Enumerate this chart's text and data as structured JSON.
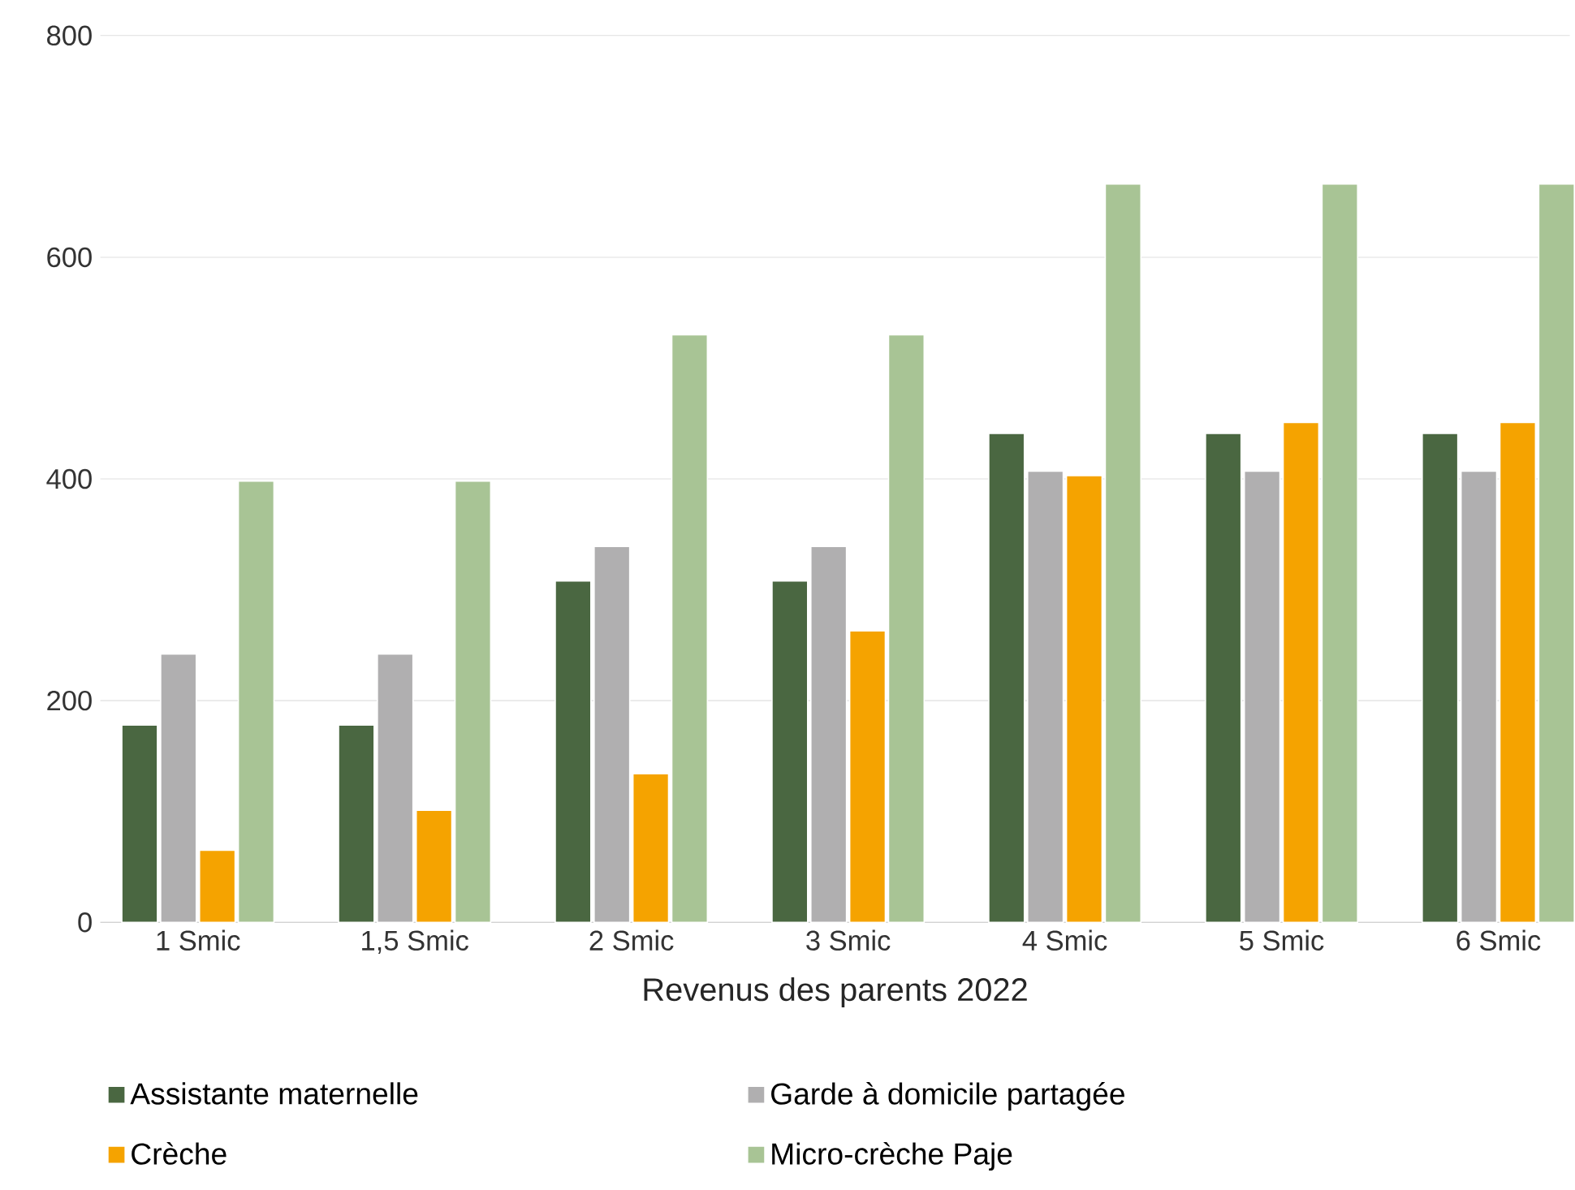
{
  "chart_data": {
    "type": "bar",
    "xlabel": "Revenus des parents 2022",
    "categories": [
      "1 Smic",
      "1,5 Smic",
      "2 Smic",
      "3 Smic",
      "4 Smic",
      "5 Smic",
      "6 Smic"
    ],
    "series": [
      {
        "name": "Assistante maternelle",
        "color": "#4a6741",
        "values": [
          178,
          178,
          308,
          308,
          441,
          441,
          441
        ]
      },
      {
        "name": "Garde à domicile partagée",
        "color": "#b0afb0",
        "values": [
          242,
          242,
          339,
          339,
          407,
          407,
          407
        ]
      },
      {
        "name": "Crèche",
        "color": "#f5a300",
        "values": [
          65,
          101,
          134,
          263,
          403,
          451,
          451
        ]
      },
      {
        "name": "Micro-crèche Paje",
        "color": "#a8c495",
        "values": [
          398,
          398,
          530,
          530,
          666,
          666,
          666
        ]
      }
    ],
    "ylim": [
      0,
      800
    ],
    "yticks": [
      0,
      200,
      400,
      600,
      800
    ],
    "grid": "y",
    "legend": "bottom"
  }
}
